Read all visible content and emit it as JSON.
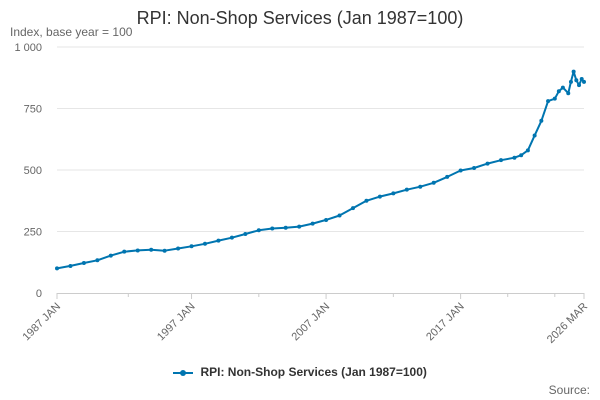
{
  "chart_data": {
    "type": "line",
    "title": "RPI: Non-Shop Services (Jan 1987=100)",
    "ylabel": "Index, base year = 100",
    "xlabel": "",
    "ylim": [
      0,
      1000
    ],
    "xlim": [
      1987.0,
      2026.17
    ],
    "y_ticks": [
      0,
      250,
      500,
      750,
      1000
    ],
    "y_tick_labels": [
      "0",
      "250",
      "500",
      "750",
      "1 000"
    ],
    "x_ticks": [
      1987.0,
      1997.0,
      2007.0,
      2017.0,
      2026.17
    ],
    "x_tick_labels": [
      "1987 JAN",
      "1997 JAN",
      "2007 JAN",
      "2017 JAN",
      "2026 MAR"
    ],
    "grid": true,
    "legend_position": "bottom",
    "series": [
      {
        "name": "RPI: Non-Shop Services (Jan 1987=100)",
        "color": "#0075b0",
        "x": [
          1987.0,
          1988.0,
          1989.0,
          1990.0,
          1991.0,
          1992.0,
          1993.0,
          1994.0,
          1995.0,
          1996.0,
          1997.0,
          1998.0,
          1999.0,
          2000.0,
          2001.0,
          2002.0,
          2003.0,
          2004.0,
          2005.0,
          2006.0,
          2007.0,
          2008.0,
          2009.0,
          2010.0,
          2011.0,
          2012.0,
          2013.0,
          2014.0,
          2015.0,
          2016.0,
          2017.0,
          2018.0,
          2019.0,
          2020.0,
          2021.0,
          2021.5,
          2022.0,
          2022.5,
          2023.0,
          2023.5,
          2024.0,
          2024.3,
          2024.6,
          2025.0,
          2025.2,
          2025.4,
          2025.6,
          2025.8,
          2026.0,
          2026.17
        ],
        "values": [
          100,
          110,
          122,
          133,
          152,
          168,
          173,
          176,
          172,
          181,
          190,
          200,
          213,
          225,
          240,
          255,
          262,
          265,
          270,
          282,
          297,
          315,
          345,
          375,
          392,
          405,
          420,
          432,
          448,
          472,
          498,
          508,
          526,
          540,
          550,
          560,
          580,
          640,
          700,
          780,
          790,
          820,
          835,
          812,
          858,
          900,
          865,
          845,
          870,
          858
        ]
      }
    ]
  },
  "footer": {
    "source": "Source:"
  }
}
